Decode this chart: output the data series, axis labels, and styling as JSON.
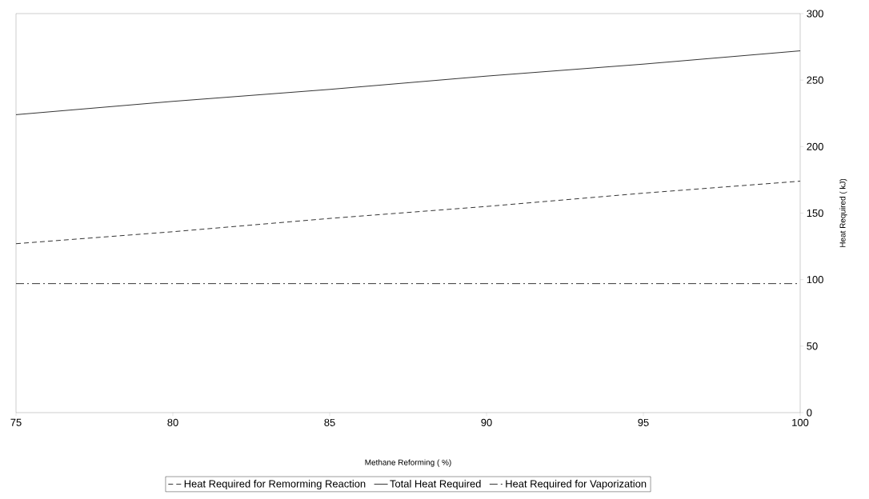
{
  "chart_data": {
    "type": "line",
    "xlabel": "Methane Reforming ( %)",
    "ylabel": "Heat Required ( kJ)",
    "x": [
      75,
      80,
      85,
      90,
      95,
      100
    ],
    "series": [
      {
        "name": "Heat Required for Remorming Reaction",
        "color": "#000000",
        "line_style": "dashed",
        "values": [
          127,
          136,
          146,
          155,
          165,
          174
        ]
      },
      {
        "name": "Total Heat Required",
        "color": "#000000",
        "line_style": "solid",
        "values": [
          224,
          234,
          243,
          253,
          262,
          272
        ]
      },
      {
        "name": "Heat Required for Vaporization",
        "color": "#000000",
        "line_style": "dashdot",
        "values": [
          97,
          97,
          97,
          97,
          97,
          97
        ]
      }
    ],
    "xlim": [
      75,
      100
    ],
    "ylim": [
      0,
      300
    ],
    "xticks": [
      75,
      80,
      85,
      90,
      95,
      100
    ],
    "yticks": [
      0,
      50,
      100,
      150,
      200,
      250,
      300
    ],
    "grid": false,
    "legend": "bottom",
    "marker": "none"
  }
}
